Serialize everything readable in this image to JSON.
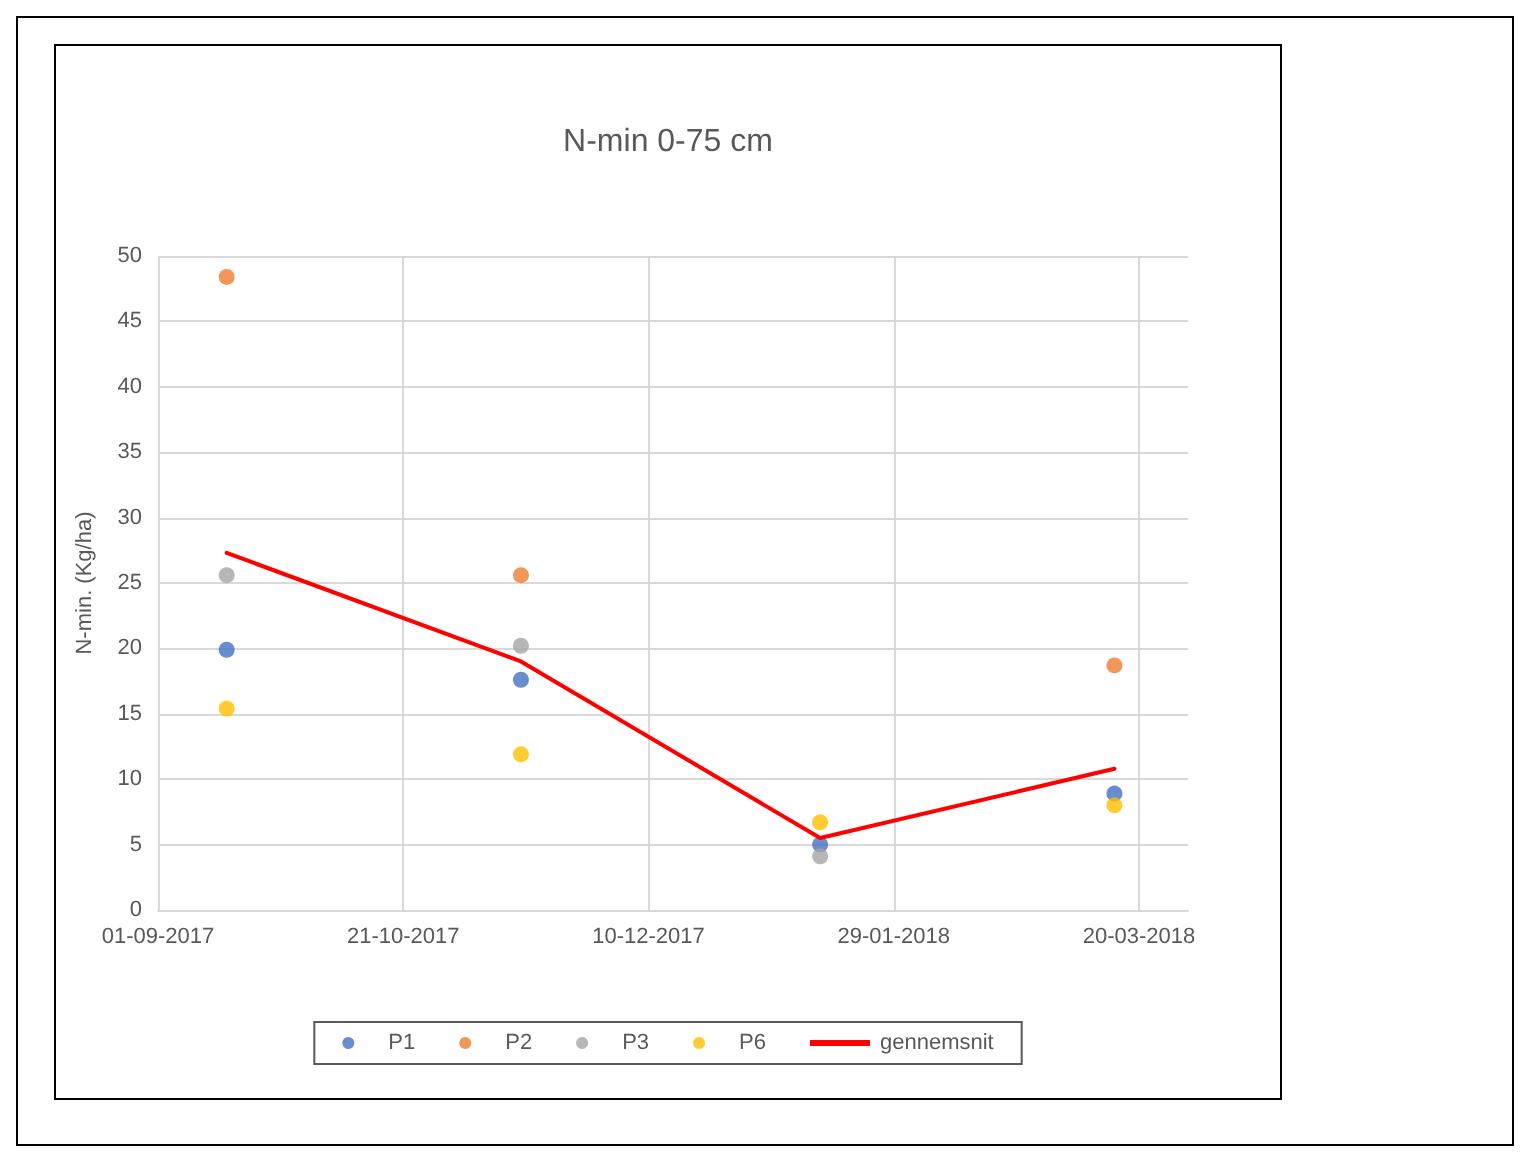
{
  "chart_data": {
    "type": "scatter",
    "title": "N-min 0-75 cm",
    "ylabel": "N-min. (Kg/ha)",
    "x": [
      "2017-09-15",
      "2017-11-14",
      "2018-01-14",
      "2018-03-15"
    ],
    "series": [
      {
        "name": "P1",
        "color": "#4472c4",
        "values": [
          19.9,
          17.6,
          5.0,
          8.9
        ]
      },
      {
        "name": "P2",
        "color": "#ed7d31",
        "values": [
          48.4,
          25.6,
          null,
          18.7
        ]
      },
      {
        "name": "P3",
        "color": "#a5a5a5",
        "values": [
          25.6,
          20.2,
          4.1,
          null
        ]
      },
      {
        "name": "P6",
        "color": "#ffc000",
        "values": [
          15.4,
          11.9,
          6.7,
          8.0
        ]
      },
      {
        "name": "gennemsnit",
        "type": "line",
        "marker": "none",
        "color": "#ff0000",
        "values": [
          27.3,
          19.0,
          5.5,
          10.8
        ]
      }
    ],
    "xlim": [
      "2017-09-01",
      "2018-03-30"
    ],
    "xticks": [
      {
        "value": "2017-09-01",
        "label": "01-09-2017"
      },
      {
        "value": "2017-10-21",
        "label": "21-10-2017"
      },
      {
        "value": "2017-12-10",
        "label": "10-12-2017"
      },
      {
        "value": "2018-01-29",
        "label": "29-01-2018"
      },
      {
        "value": "2018-03-20",
        "label": "20-03-2018"
      }
    ],
    "ylim": [
      0,
      50
    ],
    "yticks": [
      0,
      5,
      10,
      15,
      20,
      25,
      30,
      35,
      40,
      45,
      50
    ],
    "grid": true,
    "legend": "bottom",
    "marker": "circle",
    "line_style": "solid"
  }
}
